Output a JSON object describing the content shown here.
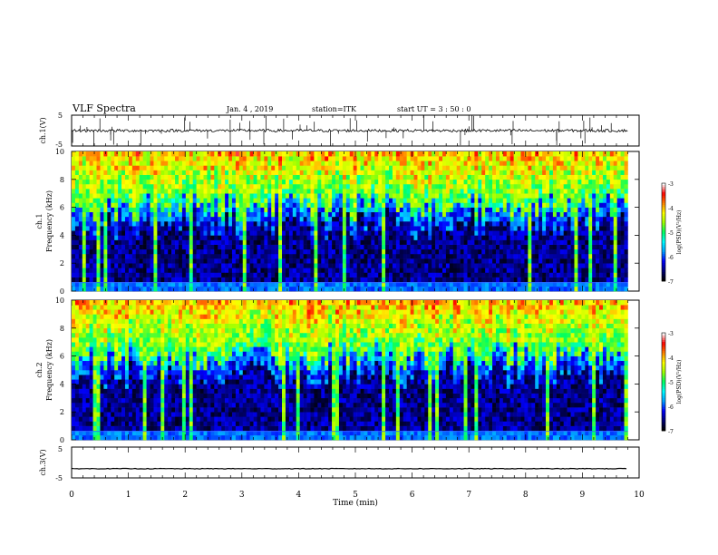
{
  "header": {
    "title": "VLF Spectra",
    "date": "Jan. 4 , 2019",
    "station": "station=ITK",
    "start": "start UT = 3 : 50 : 0"
  },
  "chart_data": [
    {
      "type": "line",
      "panel": "ch1-waveform",
      "ylabel": "ch.1(V)",
      "ylim": [
        -5,
        5
      ],
      "yticks": [
        "5",
        "-5"
      ],
      "xlim": [
        0,
        10
      ],
      "baseline": 0,
      "note": "noisy waveform near 0 V with sparse impulsive spikes"
    },
    {
      "type": "heatmap",
      "panel": "ch1-spectrogram",
      "ylabel_top": "ch.1",
      "ylabel": "Frequency (kHz)",
      "ylim": [
        0,
        10
      ],
      "yticks": [
        "0",
        "2",
        "4",
        "6",
        "8",
        "10"
      ],
      "xlim": [
        0,
        10
      ],
      "colorbar": {
        "label": "log(PSD)(V²/Hz)",
        "range": [
          -7,
          -3
        ],
        "ticks": [
          "-3",
          "-4",
          "-5",
          "-6",
          "-7"
        ]
      },
      "colormap": [
        "#000000",
        "#00007a",
        "#0000ff",
        "#00a0ff",
        "#00ffff",
        "#00ff60",
        "#a0ff00",
        "#ffff00",
        "#ff8000",
        "#ff0000",
        "#ffffff"
      ],
      "active_range_min": [
        0,
        9.8
      ],
      "background_level_db": -7,
      "band_high_kHz": [
        6,
        10
      ],
      "band_high_level": -4.5
    },
    {
      "type": "heatmap",
      "panel": "ch2-spectrogram",
      "ylabel_top": "ch.2",
      "ylabel": "Frequency (kHz)",
      "ylim": [
        0,
        10
      ],
      "yticks": [
        "0",
        "2",
        "4",
        "6",
        "8",
        "10"
      ],
      "xlim": [
        0,
        10
      ],
      "colorbar": {
        "label": "log(PSD)(V²/Hz)",
        "range": [
          -7,
          -3
        ],
        "ticks": [
          "-3",
          "-4",
          "-5",
          "-6",
          "-7"
        ]
      },
      "colormap": [
        "#000000",
        "#00007a",
        "#0000ff",
        "#00a0ff",
        "#00ffff",
        "#00ff60",
        "#a0ff00",
        "#ffff00",
        "#ff8000",
        "#ff0000",
        "#ffffff"
      ],
      "active_range_min": [
        0,
        9.8
      ],
      "background_level_db": -7,
      "band_high_kHz": [
        6,
        10
      ],
      "band_high_level": -4.5
    },
    {
      "type": "line",
      "panel": "ch3-waveform",
      "ylabel": "ch.3(V)",
      "ylim": [
        -5,
        5
      ],
      "yticks": [
        "5",
        "-5"
      ],
      "xlim": [
        0,
        10
      ],
      "xlabel": "Time (min)",
      "xticks": [
        "0",
        "1",
        "2",
        "3",
        "4",
        "5",
        "6",
        "7",
        "8",
        "9",
        "10"
      ],
      "baseline": -2,
      "note": "flat trace near -2 V"
    }
  ]
}
